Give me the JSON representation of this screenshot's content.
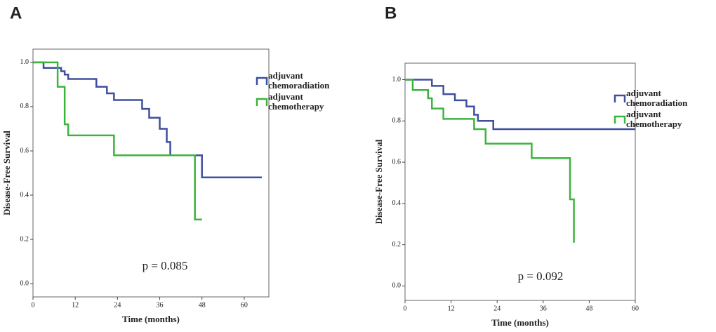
{
  "chart_data": [
    {
      "type": "step",
      "panel": "A",
      "xlabel": "Time (months)",
      "ylabel": "Disease-Free Survival",
      "annotation": "p = 0.085",
      "xlim": [
        0,
        67
      ],
      "ylim": [
        -0.06,
        1.06
      ],
      "xticks": [
        0,
        12,
        24,
        36,
        48,
        60
      ],
      "yticks": [
        {
          "value": 0,
          "label": "0.0"
        },
        {
          "value": 0.2,
          "label": "0.2"
        },
        {
          "value": 0.4,
          "label": "0.4"
        },
        {
          "value": 0.6,
          "label": "0.6"
        },
        {
          "value": 0.8,
          "label": "0.8"
        },
        {
          "value": 1,
          "label": "1.0"
        }
      ],
      "series": [
        {
          "name": "adjuvant\nchemoradiation",
          "color": "#3f4fa0",
          "x": [
            0,
            3,
            8,
            9,
            10,
            18,
            21,
            23,
            31,
            33,
            36,
            38,
            39,
            48,
            65
          ],
          "values": [
            1,
            0.975,
            0.96,
            0.945,
            0.925,
            0.89,
            0.86,
            0.83,
            0.79,
            0.75,
            0.7,
            0.64,
            0.58,
            0.48,
            0.48
          ]
        },
        {
          "name": "adjuvant\nchemotherapy",
          "color": "#3cb43c",
          "x": [
            0,
            7,
            9,
            10,
            23,
            46,
            48
          ],
          "values": [
            1,
            0.89,
            0.72,
            0.67,
            0.58,
            0.29,
            0.29
          ]
        }
      ]
    },
    {
      "type": "step",
      "panel": "B",
      "xlabel": "Time (months)",
      "ylabel": "Disease-Free Survival",
      "annotation": "p = 0.092",
      "xlim": [
        0,
        60
      ],
      "ylim": [
        -0.07,
        1.08
      ],
      "xticks": [
        0,
        12,
        24,
        36,
        48,
        60
      ],
      "yticks": [
        {
          "value": 0,
          "label": "0.0"
        },
        {
          "value": 0.2,
          "label": "0.2"
        },
        {
          "value": 0.4,
          "label": "0.4"
        },
        {
          "value": 0.6,
          "label": "0.6"
        },
        {
          "value": 0.8,
          "label": "0.8"
        },
        {
          "value": 1,
          "label": "1.0"
        }
      ],
      "series": [
        {
          "name": "adjuvant\nchemoradiation",
          "color": "#3f4fa0",
          "x": [
            0,
            7,
            10,
            13,
            16,
            18,
            19,
            23,
            60
          ],
          "values": [
            1,
            0.97,
            0.93,
            0.9,
            0.87,
            0.83,
            0.8,
            0.76,
            0.76
          ]
        },
        {
          "name": "adjuvant\nchemotherapy",
          "color": "#3cb43c",
          "x": [
            0,
            2,
            6,
            7,
            10,
            18,
            21,
            33,
            43,
            44
          ],
          "values": [
            1,
            0.95,
            0.91,
            0.86,
            0.81,
            0.76,
            0.69,
            0.62,
            0.42,
            0.21
          ]
        }
      ]
    }
  ]
}
